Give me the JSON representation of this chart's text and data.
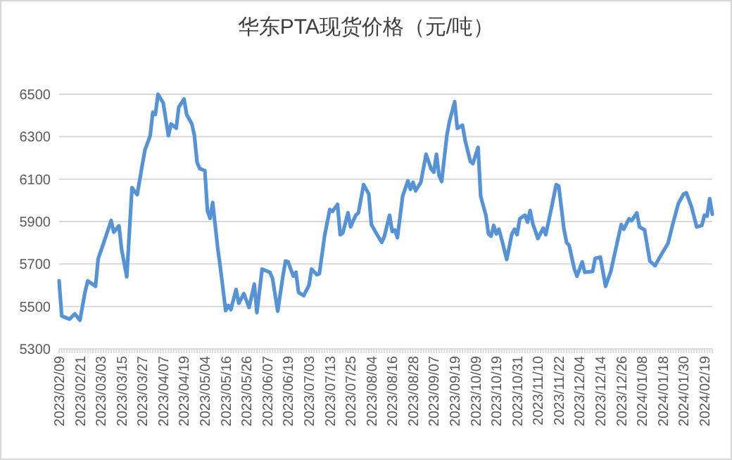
{
  "chart_data": {
    "type": "line",
    "title": "华东PTA现货价格（元/吨）",
    "categories": [
      "2023/02/09",
      null,
      null,
      null,
      null,
      null,
      null,
      null,
      "2023/02/21",
      null,
      null,
      null,
      null,
      null,
      null,
      null,
      "2023/03/03",
      null,
      null,
      null,
      null,
      null,
      null,
      null,
      "2023/03/15",
      null,
      null,
      null,
      null,
      null,
      null,
      null,
      "2023/03/27",
      null,
      null,
      null,
      null,
      null,
      null,
      null,
      "2023/04/07",
      null,
      null,
      null,
      null,
      null,
      null,
      null,
      "2023/04/19",
      null,
      null,
      null,
      null,
      null,
      null,
      null,
      "2023/05/04",
      null,
      null,
      null,
      null,
      null,
      null,
      null,
      "2023/05/16",
      null,
      null,
      null,
      null,
      null,
      null,
      null,
      "2023/05/26",
      null,
      null,
      null,
      null,
      null,
      null,
      null,
      "2023/06/07",
      null,
      null,
      null,
      null,
      null,
      null,
      null,
      "2023/06/19",
      null,
      null,
      null,
      null,
      null,
      null,
      null,
      "2023/07/03",
      null,
      null,
      null,
      null,
      null,
      null,
      null,
      "2023/07/13",
      null,
      null,
      null,
      null,
      null,
      null,
      null,
      "2023/07/25",
      null,
      null,
      null,
      null,
      null,
      null,
      null,
      "2023/08/04",
      null,
      null,
      null,
      null,
      null,
      null,
      null,
      "2023/08/16",
      null,
      null,
      null,
      null,
      null,
      null,
      null,
      "2023/08/28",
      null,
      null,
      null,
      null,
      null,
      null,
      null,
      "2023/09/07",
      null,
      null,
      null,
      null,
      null,
      null,
      null,
      "2023/09/19",
      null,
      null,
      null,
      null,
      null,
      null,
      null,
      "2023/10/09",
      null,
      null,
      null,
      null,
      null,
      null,
      null,
      "2023/10/19",
      null,
      null,
      null,
      null,
      null,
      null,
      null,
      "2023/10/31",
      null,
      null,
      null,
      null,
      null,
      null,
      null,
      "2023/11/10",
      null,
      null,
      null,
      null,
      null,
      null,
      null,
      "2023/11/22",
      null,
      null,
      null,
      null,
      null,
      null,
      null,
      "2023/12/04",
      null,
      null,
      null,
      null,
      null,
      null,
      null,
      "2023/12/14",
      null,
      null,
      null,
      null,
      null,
      null,
      null,
      "2023/12/26",
      null,
      null,
      null,
      null,
      null,
      null,
      null,
      "2024/01/08",
      null,
      null,
      null,
      null,
      null,
      null,
      null,
      "2024/01/18",
      null,
      null,
      null,
      null,
      null,
      null,
      null,
      "2024/01/30",
      null,
      null,
      null,
      null,
      null,
      null,
      null,
      "2024/02/19",
      null,
      null,
      null
    ],
    "series": [
      {
        "color": "#5592d6",
        "values": [
          5620,
          5455,
          null,
          null,
          5440,
          null,
          5465,
          null,
          5435,
          null,
          5570,
          5620,
          null,
          null,
          5595,
          5725,
          null,
          5795,
          null,
          null,
          5905,
          5850,
          null,
          5880,
          5770,
          null,
          5640,
          null,
          6060,
          null,
          6027,
          null,
          6170,
          6238,
          null,
          6305,
          6415,
          6405,
          6500,
          6480,
          6460,
          null,
          6305,
          6360,
          null,
          6340,
          6440,
          null,
          6478,
          6405,
          null,
          6360,
          6305,
          6180,
          6150,
          null,
          6140,
          5950,
          5915,
          5990,
          null,
          5770,
          5680,
          null,
          5480,
          5505,
          5485,
          null,
          5580,
          5515,
          null,
          5560,
          null,
          5495,
          null,
          5605,
          5471,
          null,
          5676,
          null,
          null,
          5661,
          5632,
          null,
          5478,
          null,
          5643,
          5714,
          5710,
          null,
          5643,
          5661,
          5566,
          null,
          5551,
          null,
          5599,
          5676,
          null,
          5650,
          5654,
          null,
          5831,
          null,
          5957,
          5948,
          null,
          5981,
          5838,
          5846,
          null,
          5941,
          5875,
          null,
          5930,
          5941,
          null,
          6074,
          null,
          6030,
          5886,
          null,
          5842,
          null,
          5802,
          5831,
          null,
          5930,
          5853,
          5860,
          5824,
          null,
          6019,
          null,
          6092,
          6052,
          6085,
          6045,
          null,
          6085,
          null,
          6217,
          null,
          6147,
          6133,
          6217,
          6118,
          6089,
          null,
          6306,
          6372,
          null,
          6465,
          6339,
          null,
          6354,
          6284,
          null,
          6184,
          6173,
          null,
          6250,
          6019,
          null,
          5930,
          5842,
          5831,
          5882,
          5842,
          5864,
          5820,
          null,
          5721,
          null,
          5842,
          5864,
          5838,
          5913,
          null,
          5930,
          5897,
          5952,
          5891,
          null,
          5820,
          null,
          5869,
          5838,
          null,
          5952,
          null,
          6074,
          6067,
          null,
          5864,
          5802,
          5787,
          null,
          5676,
          5643,
          null,
          5710,
          5661,
          null,
          null,
          5665,
          5727,
          null,
          5732,
          null,
          5595,
          null,
          5665,
          null,
          5776,
          null,
          5886,
          5864,
          null,
          5913,
          5904,
          null,
          5941,
          5875,
          null,
          5860,
          null,
          5714,
          null,
          5692,
          null,
          5736,
          null,
          null,
          5798,
          null,
          5897,
          null,
          5986,
          null,
          6030,
          6036,
          null,
          5970,
          null,
          5875,
          null,
          5882,
          5930,
          5926,
          6008,
          5935
        ]
      }
    ],
    "ylim": [
      5300,
      6500
    ],
    "yticks": [
      5300,
      5500,
      5700,
      5900,
      6100,
      6300,
      6500
    ],
    "grid": "y",
    "marker": "none",
    "line_style": "solid"
  }
}
